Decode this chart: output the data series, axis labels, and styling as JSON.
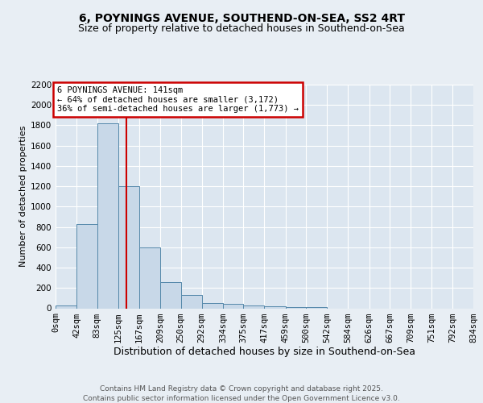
{
  "title1": "6, POYNINGS AVENUE, SOUTHEND-ON-SEA, SS2 4RT",
  "title2": "Size of property relative to detached houses in Southend-on-Sea",
  "xlabel": "Distribution of detached houses by size in Southend-on-Sea",
  "ylabel": "Number of detached properties",
  "annotation_title": "6 POYNINGS AVENUE: 141sqm",
  "annotation_line1": "← 64% of detached houses are smaller (3,172)",
  "annotation_line2": "36% of semi-detached houses are larger (1,773) →",
  "property_size": 141,
  "bin_edges": [
    0,
    42,
    83,
    125,
    167,
    209,
    250,
    292,
    334,
    375,
    417,
    459,
    500,
    542,
    584,
    626,
    667,
    709,
    751,
    792,
    834
  ],
  "bar_heights": [
    25,
    830,
    1820,
    1200,
    600,
    260,
    130,
    50,
    40,
    30,
    20,
    15,
    15,
    0,
    0,
    0,
    0,
    0,
    0,
    0
  ],
  "bar_color": "#c8d8e8",
  "bar_edge_color": "#5588aa",
  "vline_color": "#cc0000",
  "vline_x": 141,
  "box_edge_color": "#cc0000",
  "background_color": "#e8eef4",
  "plot_bg_color": "#dce6f0",
  "ylim": [
    0,
    2200
  ],
  "yticks": [
    0,
    200,
    400,
    600,
    800,
    1000,
    1200,
    1400,
    1600,
    1800,
    2000,
    2200
  ],
  "footer": "Contains HM Land Registry data © Crown copyright and database right 2025.\nContains public sector information licensed under the Open Government Licence v3.0.",
  "title1_fontsize": 10,
  "title2_fontsize": 9,
  "xlabel_fontsize": 9,
  "ylabel_fontsize": 8,
  "tick_fontsize": 7.5,
  "footer_fontsize": 6.5,
  "anno_fontsize": 7.5
}
